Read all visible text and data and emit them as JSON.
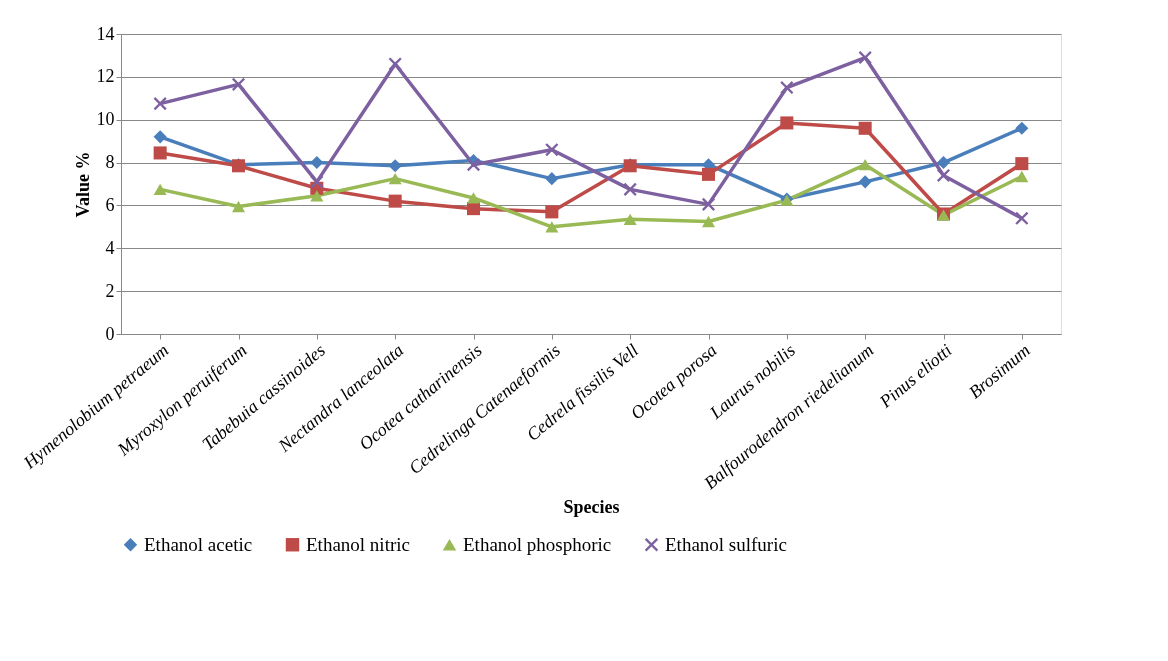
{
  "chart_data": {
    "type": "line",
    "xlabel": "Species",
    "ylabel": "Value %",
    "categories": [
      "Hymenolobium petraeum",
      "Myroxylon peruiferum",
      "Tabebuia cassinoides",
      "Nectandra lanceolata",
      "Ocotea catharinensis",
      "Cedrelinga Catenaeformis",
      "Cedrela fissilis Vell",
      "Ocotea porosa",
      "Laurus nobilis",
      "Balfourodendron riedelianum",
      "Pinus eliotti",
      "Brosimum"
    ],
    "series": [
      {
        "name": "Ethanol acetic",
        "color": "#4a7ebb",
        "marker": "diamond",
        "values": [
          9.2,
          7.9,
          8.0,
          7.85,
          8.1,
          7.25,
          7.9,
          7.9,
          6.3,
          7.1,
          8.0,
          9.6
        ]
      },
      {
        "name": "Ethanol nitric",
        "color": "#be4b48",
        "marker": "square",
        "values": [
          8.45,
          7.85,
          6.8,
          6.2,
          5.85,
          5.7,
          7.85,
          7.45,
          9.85,
          9.6,
          5.6,
          7.95
        ]
      },
      {
        "name": "Ethanol phosphoric",
        "color": "#98b954",
        "marker": "triangle",
        "values": [
          6.75,
          5.95,
          6.45,
          7.25,
          6.35,
          5.0,
          5.35,
          5.25,
          6.25,
          7.9,
          5.55,
          7.35
        ]
      },
      {
        "name": "Ethanol sulfuric",
        "color": "#7d60a0",
        "marker": "cross",
        "values": [
          10.75,
          11.65,
          7.1,
          12.6,
          7.9,
          8.6,
          6.75,
          6.05,
          11.5,
          12.9,
          7.4,
          5.4
        ]
      }
    ],
    "ylim": [
      0,
      14
    ],
    "yticks": [
      0,
      2,
      4,
      6,
      8,
      10,
      12,
      14
    ],
    "grid": "y",
    "legend": "bottom"
  }
}
